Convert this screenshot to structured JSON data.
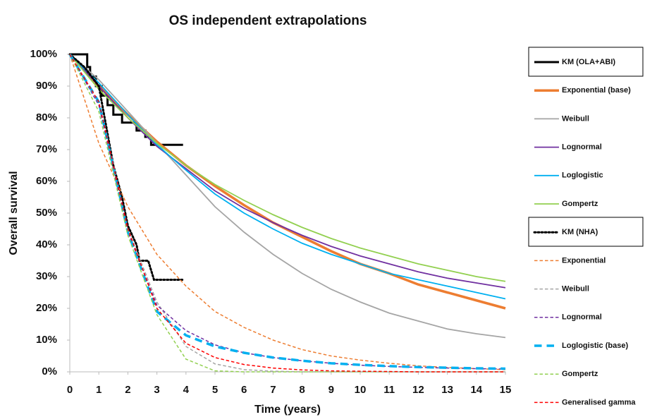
{
  "chart_data": {
    "type": "line",
    "title": "OS independent extrapolations",
    "x_label": "Time (years)",
    "y_label": "Overall survival",
    "xlim": [
      0,
      15
    ],
    "xticks": [
      0,
      1,
      2,
      3,
      4,
      5,
      6,
      7,
      8,
      9,
      10,
      11,
      12,
      13,
      14,
      15
    ],
    "ylim": [
      0,
      100
    ],
    "yticks": [
      {
        "value": 0,
        "label": "0%"
      },
      {
        "value": 10,
        "label": "10%"
      },
      {
        "value": 20,
        "label": "20%"
      },
      {
        "value": 30,
        "label": "30%"
      },
      {
        "value": 40,
        "label": "40%"
      },
      {
        "value": 50,
        "label": "50%"
      },
      {
        "value": 60,
        "label": "60%"
      },
      {
        "value": 70,
        "label": "70%"
      },
      {
        "value": 80,
        "label": "80%"
      },
      {
        "value": 90,
        "label": "90%"
      },
      {
        "value": 100,
        "label": "100%"
      }
    ],
    "series": [
      {
        "name": "KM (OLA+ABI)",
        "color": "#000000",
        "style": "solid",
        "width": 3,
        "x": [
          0,
          0.6,
          0.6,
          0.7,
          0.7,
          0.9,
          0.9,
          1.1,
          1.1,
          1.3,
          1.3,
          1.5,
          1.5,
          1.8,
          1.8,
          2.3,
          2.3,
          2.6,
          2.6,
          2.8,
          2.8,
          3.9
        ],
        "values": [
          100,
          100,
          96,
          96,
          93,
          93,
          90,
          90,
          87,
          87,
          84,
          84,
          81,
          81,
          78.5,
          78.5,
          76,
          76,
          74,
          74,
          71.5,
          71.5
        ]
      },
      {
        "name": "Exponential (base)",
        "color": "#ed7d31",
        "style": "solid",
        "width": 3.5,
        "x": [
          0,
          1,
          2,
          3,
          4,
          5,
          6,
          7,
          8,
          9,
          10,
          11,
          12,
          13,
          14,
          15
        ],
        "values": [
          100,
          90,
          81,
          72.5,
          65,
          58.5,
          52.5,
          47,
          42.5,
          38,
          34,
          31,
          27.5,
          25,
          22.5,
          20
        ]
      },
      {
        "name": "Weibull",
        "color": "#a5a5a5",
        "style": "solid",
        "width": 1.8,
        "x": [
          0,
          1,
          2,
          3,
          4,
          5,
          6,
          7,
          8,
          9,
          10,
          11,
          12,
          13,
          14,
          15
        ],
        "values": [
          100,
          92,
          82,
          72,
          62,
          52,
          44,
          37,
          31,
          26,
          22,
          18.5,
          16,
          13.5,
          12,
          10.8
        ]
      },
      {
        "name": "Lognormal",
        "color": "#7030a0",
        "style": "solid",
        "width": 1.8,
        "x": [
          0,
          1,
          2,
          3,
          4,
          5,
          6,
          7,
          8,
          9,
          10,
          11,
          12,
          13,
          14,
          15
        ],
        "values": [
          100,
          90,
          80,
          71,
          64,
          57,
          51.5,
          47,
          43,
          39.5,
          36.5,
          34,
          31.5,
          29.5,
          28,
          26.5
        ]
      },
      {
        "name": "Loglogistic",
        "color": "#00b0f0",
        "style": "solid",
        "width": 1.8,
        "x": [
          0,
          1,
          2,
          3,
          4,
          5,
          6,
          7,
          8,
          9,
          10,
          11,
          12,
          13,
          14,
          15
        ],
        "values": [
          100,
          91,
          81,
          71.5,
          63.5,
          56,
          50,
          45,
          40.5,
          37,
          34,
          31,
          29,
          27,
          25,
          23
        ]
      },
      {
        "name": "Gompertz",
        "color": "#92d050",
        "style": "solid",
        "width": 1.8,
        "x": [
          0,
          1,
          2,
          3,
          4,
          5,
          6,
          7,
          8,
          9,
          10,
          11,
          12,
          13,
          14,
          15
        ],
        "values": [
          100,
          89,
          80,
          72,
          65,
          59,
          54,
          49.5,
          45.5,
          42,
          39,
          36.5,
          34,
          32,
          30,
          28.5
        ]
      },
      {
        "name": "KM (NHA)",
        "color": "#000000",
        "style": "dotted",
        "width": 3,
        "x": [
          0,
          0.5,
          1,
          1.2,
          1.5,
          1.8,
          2,
          2.3,
          2.4,
          2.7,
          2.9,
          3.9
        ],
        "values": [
          100,
          96,
          90,
          80,
          65,
          55,
          46,
          40,
          35,
          35,
          29,
          29
        ]
      },
      {
        "name": "Exponential",
        "color": "#ed7d31",
        "style": "dashed",
        "width": 1.5,
        "x": [
          0,
          1,
          2,
          3,
          4,
          5,
          6,
          7,
          8,
          9,
          10,
          11,
          12,
          13,
          14,
          15
        ],
        "values": [
          100,
          72,
          52,
          37,
          27,
          19,
          14,
          10,
          7,
          5,
          3.7,
          2.7,
          1.9,
          1.4,
          1,
          0.7
        ]
      },
      {
        "name": "Weibull",
        "color": "#a5a5a5",
        "style": "dashed",
        "width": 1.5,
        "x": [
          0,
          1,
          2,
          3,
          4,
          5,
          6,
          7,
          8,
          9,
          10,
          11,
          12,
          13,
          14,
          15
        ],
        "values": [
          100,
          85,
          45,
          22,
          8,
          2.5,
          0.7,
          0.2,
          0,
          0,
          0,
          0,
          0,
          0,
          0,
          0
        ]
      },
      {
        "name": "Lognormal",
        "color": "#7030a0",
        "style": "dashed",
        "width": 1.5,
        "x": [
          0,
          1,
          2,
          3,
          4,
          5,
          6,
          7,
          8,
          9,
          10,
          11,
          12,
          13,
          14,
          15
        ],
        "values": [
          100,
          84,
          44,
          21,
          13,
          8.5,
          6,
          4.5,
          3.5,
          2.7,
          2.1,
          1.7,
          1.4,
          1.2,
          1,
          0.9
        ]
      },
      {
        "name": "Loglogistic (base)",
        "color": "#00b0f0",
        "style": "dashed",
        "width": 3.5,
        "x": [
          0,
          1,
          2,
          3,
          4,
          5,
          6,
          7,
          8,
          9,
          10,
          11,
          12,
          13,
          14,
          15
        ],
        "values": [
          100,
          85,
          44,
          19,
          11.5,
          8,
          6,
          4.5,
          3.5,
          2.7,
          2.2,
          1.8,
          1.5,
          1.3,
          1.1,
          1
        ]
      },
      {
        "name": "Gompertz",
        "color": "#92d050",
        "style": "dashed",
        "width": 1.5,
        "x": [
          0,
          1,
          2,
          3,
          4,
          5,
          6,
          7,
          8,
          9,
          10,
          11,
          12,
          13,
          14,
          15
        ],
        "values": [
          100,
          82,
          43,
          18,
          4,
          0.3,
          0,
          0,
          0,
          0,
          0,
          0,
          0,
          0,
          0,
          0
        ]
      },
      {
        "name": "Generalised gamma",
        "color": "#ff0000",
        "style": "dashed",
        "width": 1.5,
        "x": [
          0,
          1,
          2,
          3,
          4,
          5,
          6,
          7,
          8,
          9,
          10,
          11,
          12,
          13,
          14,
          15
        ],
        "values": [
          100,
          85,
          45,
          20,
          9,
          4.5,
          2.3,
          1.2,
          0.6,
          0.3,
          0.2,
          0.1,
          0,
          0,
          0,
          0
        ]
      }
    ]
  }
}
